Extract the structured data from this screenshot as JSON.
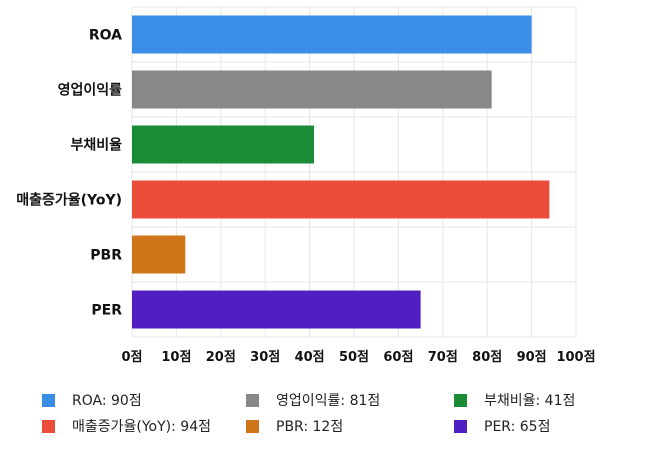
{
  "chart_data": {
    "type": "bar",
    "orientation": "horizontal",
    "categories": [
      "ROA",
      "영업이익률",
      "부채비율",
      "매출증가율(YoY)",
      "PBR",
      "PER"
    ],
    "values": [
      90,
      81,
      41,
      94,
      12,
      65
    ],
    "colors": [
      "#3b8ee8",
      "#888888",
      "#1a8c35",
      "#eb4d3a",
      "#cf7418",
      "#4f1fc2"
    ],
    "xlim": [
      0,
      100
    ],
    "xticks": [
      "0점",
      "10점",
      "20점",
      "30점",
      "40점",
      "50점",
      "60점",
      "70점",
      "80점",
      "90점",
      "100점"
    ],
    "grid": true,
    "legend_position": "bottom",
    "legend": [
      {
        "label": "ROA: 90점",
        "color": "#3b8ee8"
      },
      {
        "label": "영업이익률: 81점",
        "color": "#888888"
      },
      {
        "label": "부채비율: 41점",
        "color": "#1a8c35"
      },
      {
        "label": "매출증가율(YoY): 94점",
        "color": "#eb4d3a"
      },
      {
        "label": "PBR: 12점",
        "color": "#cf7418"
      },
      {
        "label": "PER: 65점",
        "color": "#4f1fc2"
      }
    ]
  }
}
